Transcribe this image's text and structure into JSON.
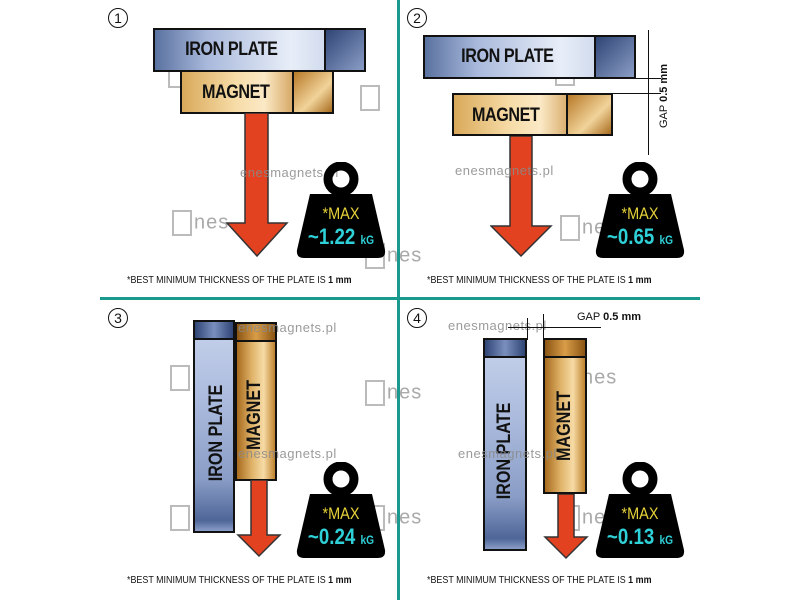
{
  "colors": {
    "divider": "#1a9a8f",
    "arrow": "#e2421f",
    "weight": "#000000",
    "max_text": "#e6d23a",
    "value_text": "#2fd1d8"
  },
  "watermark": "enesmagnets.pl",
  "logo_text": "nes",
  "labels": {
    "iron": "IRON PLATE",
    "iron_v": "IRON  PLATE",
    "iron_v4": "IRON PLATE",
    "magnet": "MAGNET"
  },
  "footnote": {
    "text": "*BEST MINIMUM THICKNESS OF THE PLATE IS ",
    "bold": "1 mm"
  },
  "panels": [
    {
      "number": "1",
      "max": "*MAX",
      "value": "~1.22",
      "unit": "kG"
    },
    {
      "number": "2",
      "max": "*MAX",
      "value": "~0.65",
      "unit": "kG",
      "gap_label": "GAP",
      "gap_value": "0.5 mm"
    },
    {
      "number": "3",
      "max": "*MAX",
      "value": "~0.24",
      "unit": "kG"
    },
    {
      "number": "4",
      "max": "*MAX",
      "value": "~0.13",
      "unit": "kG",
      "gap_label": "GAP",
      "gap_value": "0.5 mm"
    }
  ]
}
